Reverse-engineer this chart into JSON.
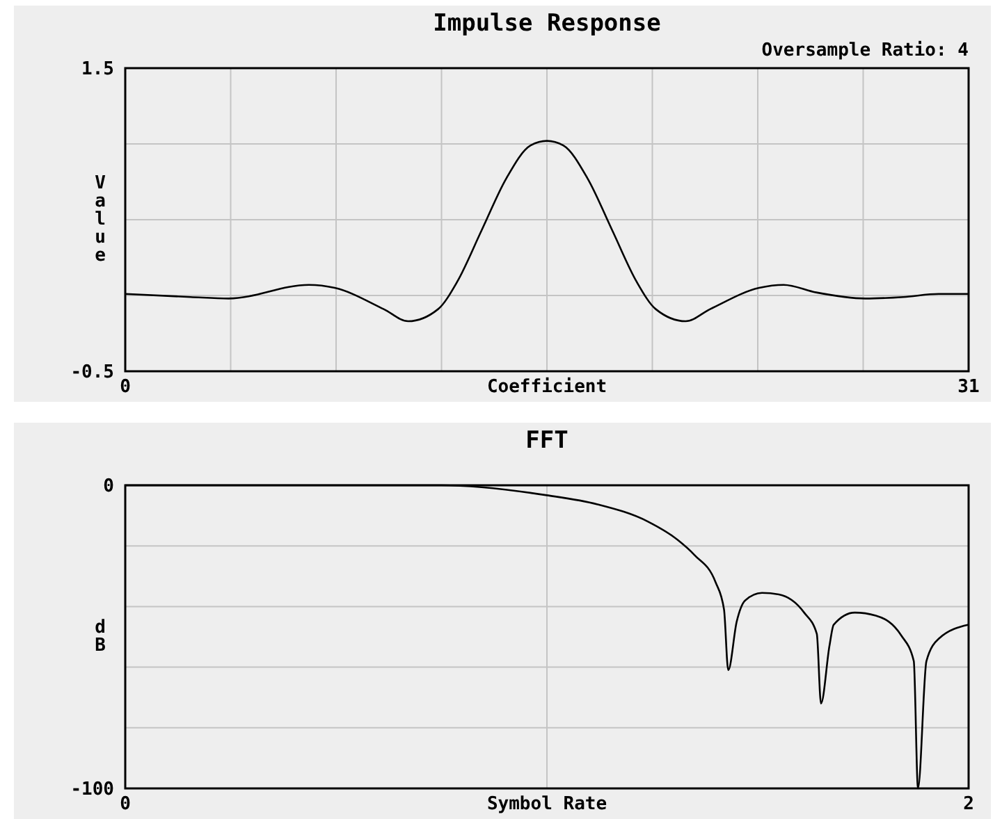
{
  "chart_data": [
    {
      "type": "line",
      "title": "Impulse Response",
      "subtitle": "Oversample Ratio: 4",
      "xlabel": "Coefficient",
      "ylabel": "Value",
      "xlim": [
        0,
        31
      ],
      "ylim": [
        -0.5,
        1.5
      ],
      "xticks": [
        0,
        {
          "value": 3.875,
          "label": null
        },
        {
          "value": 7.75,
          "label": null
        },
        {
          "value": 11.625,
          "label": null
        },
        {
          "value": 15.5,
          "label": null
        },
        {
          "value": 19.375,
          "label": null
        },
        {
          "value": 23.25,
          "label": null
        },
        {
          "value": 27.125,
          "label": null
        },
        31
      ],
      "yticks": [
        -0.5,
        {
          "value": 0,
          "label": null
        },
        {
          "value": 0.5,
          "label": null
        },
        {
          "value": 1,
          "label": null
        },
        1.5
      ],
      "grid": true,
      "series": [
        {
          "color": "#000000",
          "x": [
            0,
            2.4,
            3.8,
            6.75,
            7.7,
            9.5,
            10.4,
            11.5,
            12.2,
            13.1,
            14,
            14.9,
            15.5,
            16.1,
            17,
            17.9,
            18.8,
            19.5,
            20.6,
            21.5,
            23.3,
            24.2,
            25.4,
            27.2,
            28.6,
            29.9,
            31
          ],
          "values": [
            0.01,
            -0.01,
            -0.02,
            0.07,
            0.05,
            -0.09,
            -0.17,
            -0.09,
            0.09,
            0.43,
            0.77,
            0.99,
            1.02,
            0.99,
            0.77,
            0.43,
            0.09,
            -0.09,
            -0.17,
            -0.09,
            0.05,
            0.07,
            0.02,
            -0.02,
            -0.01,
            0.01,
            0.01
          ]
        }
      ]
    },
    {
      "type": "line",
      "title": "FFT",
      "xlabel": "Symbol Rate",
      "ylabel": "dB",
      "xlim": [
        0,
        2
      ],
      "ylim": [
        -100,
        0
      ],
      "xticks": [
        0,
        {
          "value": 1,
          "label": null
        },
        2
      ],
      "yticks": [
        -100,
        {
          "value": -80,
          "label": null
        },
        {
          "value": -60,
          "label": null
        },
        {
          "value": -40,
          "label": null
        },
        {
          "value": -20,
          "label": null
        },
        0
      ],
      "grid": true,
      "series": [
        {
          "color": "#000000",
          "x": [
            0,
            0.75,
            1,
            1.12,
            1.24,
            1.31,
            1.35,
            1.4,
            1.42,
            1.43,
            1.45,
            1.47,
            1.51,
            1.55,
            1.61,
            1.64,
            1.65,
            1.67,
            1.68,
            1.73,
            1.78,
            1.84,
            1.87,
            1.88,
            1.9,
            1.93,
            2
          ],
          "values": [
            0,
            0,
            -3.3,
            -6.3,
            -12,
            -18,
            -23,
            -32,
            -41,
            -61,
            -45,
            -38,
            -35.5,
            -36,
            -42,
            -49,
            -72,
            -53,
            -46,
            -42,
            -43,
            -49.5,
            -58,
            -100,
            -58,
            -50.5,
            -46
          ]
        }
      ]
    }
  ]
}
